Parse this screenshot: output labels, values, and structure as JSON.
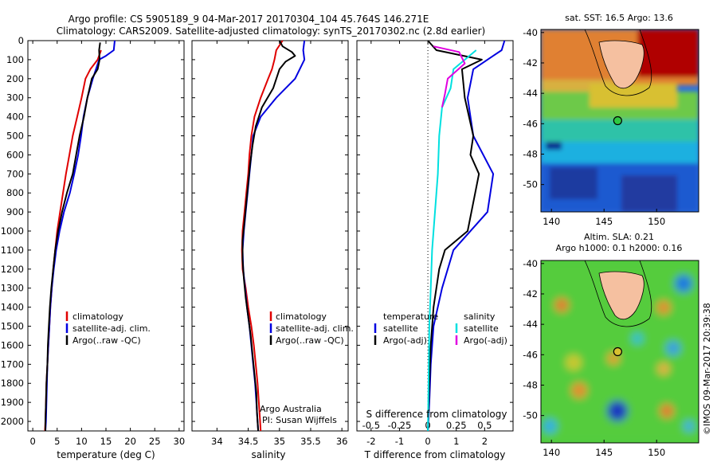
{
  "header": {
    "line1": "Argo profile: CS 5905189_9 04-Mar-2017 20170304_104 45.764S 146.271E",
    "line2": "Climatology: CARS2009. Satellite-adjusted climatology: synTS_20170302.nc (2.8d earlier)"
  },
  "colors": {
    "climatology": "#e00000",
    "satellite": "#0000e0",
    "argo": "#000000",
    "satellite_diff": "#00e0e0",
    "argo_diff": "#e000e0"
  },
  "chart_data": [
    {
      "type": "line",
      "id": "temperature",
      "xlabel": "temperature (deg C)",
      "ylim": [
        2050,
        0
      ],
      "xlim": [
        -1,
        31
      ],
      "xticks": [
        0,
        5,
        10,
        15,
        20,
        25,
        30
      ],
      "yticks": [
        0,
        100,
        200,
        300,
        400,
        500,
        600,
        700,
        800,
        900,
        1000,
        1100,
        1200,
        1300,
        1400,
        1500,
        1600,
        1700,
        1800,
        1900,
        2000
      ],
      "series": [
        {
          "name": "climatology",
          "color": "#e00000",
          "points": [
            [
              14.0,
              50
            ],
            [
              13.3,
              100
            ],
            [
              11.8,
              150
            ],
            [
              10.8,
              200
            ],
            [
              10.0,
              300
            ],
            [
              9.1,
              400
            ],
            [
              8.2,
              500
            ],
            [
              7.5,
              600
            ],
            [
              6.8,
              700
            ],
            [
              6.2,
              800
            ],
            [
              5.6,
              900
            ],
            [
              5.0,
              1000
            ],
            [
              4.6,
              1100
            ],
            [
              4.2,
              1200
            ],
            [
              3.9,
              1300
            ],
            [
              3.6,
              1400
            ],
            [
              3.4,
              1500
            ],
            [
              3.2,
              1600
            ],
            [
              3.0,
              1700
            ],
            [
              2.8,
              1800
            ],
            [
              2.7,
              1900
            ],
            [
              2.6,
              2000
            ],
            [
              2.5,
              2050
            ]
          ]
        },
        {
          "name": "satellite-adj. clim.",
          "color": "#0000e0",
          "points": [
            [
              16.8,
              0
            ],
            [
              16.6,
              50
            ],
            [
              15.0,
              80
            ],
            [
              13.6,
              100
            ],
            [
              12.3,
              200
            ],
            [
              11.2,
              300
            ],
            [
              10.4,
              400
            ],
            [
              9.9,
              500
            ],
            [
              9.3,
              600
            ],
            [
              8.5,
              700
            ],
            [
              7.6,
              800
            ],
            [
              6.4,
              900
            ],
            [
              5.5,
              1000
            ],
            [
              4.8,
              1100
            ],
            [
              4.3,
              1200
            ],
            [
              3.9,
              1300
            ],
            [
              3.6,
              1400
            ],
            [
              3.4,
              1500
            ],
            [
              3.2,
              1600
            ],
            [
              3.0,
              1700
            ],
            [
              2.9,
              1800
            ],
            [
              2.8,
              1900
            ],
            [
              2.7,
              2000
            ],
            [
              2.6,
              2050
            ]
          ]
        },
        {
          "name": "Argo(..raw -QC)",
          "color": "#000000",
          "points": [
            [
              13.8,
              10
            ],
            [
              13.6,
              50
            ],
            [
              13.7,
              100
            ],
            [
              13.3,
              150
            ],
            [
              12.1,
              200
            ],
            [
              11.2,
              300
            ],
            [
              10.5,
              400
            ],
            [
              9.6,
              500
            ],
            [
              8.9,
              600
            ],
            [
              8.2,
              700
            ],
            [
              7.0,
              800
            ],
            [
              6.0,
              900
            ],
            [
              5.2,
              1000
            ],
            [
              4.6,
              1100
            ],
            [
              4.2,
              1200
            ],
            [
              3.8,
              1300
            ],
            [
              3.5,
              1400
            ],
            [
              3.3,
              1500
            ],
            [
              3.1,
              1600
            ],
            [
              3.0,
              1700
            ],
            [
              2.8,
              1800
            ],
            [
              2.7,
              1900
            ],
            [
              2.6,
              2000
            ],
            [
              2.6,
              2050
            ]
          ]
        }
      ],
      "legend": [
        "climatology",
        "satellite-adj. clim.",
        "Argo(..raw -QC)"
      ]
    },
    {
      "type": "line",
      "id": "salinity",
      "xlabel": "salinity",
      "ylim": [
        2050,
        0
      ],
      "xlim": [
        33.6,
        36.1
      ],
      "xticks": [
        34,
        34.5,
        35,
        35.5,
        36
      ],
      "xticklabels": [
        "34",
        "34.5",
        "35",
        "35.5",
        "36"
      ],
      "series": [
        {
          "name": "climatology",
          "color": "#e00000",
          "points": [
            [
              35.05,
              0
            ],
            [
              34.95,
              50
            ],
            [
              34.92,
              100
            ],
            [
              34.88,
              150
            ],
            [
              34.82,
              200
            ],
            [
              34.7,
              300
            ],
            [
              34.6,
              400
            ],
            [
              34.55,
              500
            ],
            [
              34.52,
              600
            ],
            [
              34.5,
              700
            ],
            [
              34.47,
              800
            ],
            [
              34.44,
              900
            ],
            [
              34.41,
              1000
            ],
            [
              34.4,
              1100
            ],
            [
              34.41,
              1200
            ],
            [
              34.46,
              1300
            ],
            [
              34.5,
              1400
            ],
            [
              34.55,
              1500
            ],
            [
              34.59,
              1600
            ],
            [
              34.62,
              1700
            ],
            [
              34.65,
              1800
            ],
            [
              34.67,
              1900
            ],
            [
              34.69,
              2000
            ],
            [
              34.7,
              2050
            ]
          ]
        },
        {
          "name": "satellite-adj. clim.",
          "color": "#0000e0",
          "points": [
            [
              35.4,
              0
            ],
            [
              35.38,
              50
            ],
            [
              35.4,
              100
            ],
            [
              35.25,
              200
            ],
            [
              34.95,
              300
            ],
            [
              34.7,
              400
            ],
            [
              34.58,
              500
            ],
            [
              34.55,
              600
            ],
            [
              34.52,
              700
            ],
            [
              34.49,
              800
            ],
            [
              34.46,
              900
            ],
            [
              34.43,
              1000
            ],
            [
              34.41,
              1100
            ],
            [
              34.42,
              1200
            ],
            [
              34.45,
              1300
            ],
            [
              34.48,
              1400
            ],
            [
              34.52,
              1500
            ],
            [
              34.55,
              1600
            ],
            [
              34.58,
              1700
            ],
            [
              34.61,
              1800
            ],
            [
              34.63,
              1900
            ],
            [
              34.65,
              2000
            ],
            [
              34.66,
              2050
            ]
          ]
        },
        {
          "name": "Argo(..raw -QC)",
          "color": "#000000",
          "points": [
            [
              35.0,
              0
            ],
            [
              35.05,
              30
            ],
            [
              35.2,
              60
            ],
            [
              35.25,
              80
            ],
            [
              35.1,
              110
            ],
            [
              35.0,
              150
            ],
            [
              34.9,
              250
            ],
            [
              34.72,
              350
            ],
            [
              34.62,
              450
            ],
            [
              34.57,
              550
            ],
            [
              34.53,
              650
            ],
            [
              34.5,
              750
            ],
            [
              34.47,
              850
            ],
            [
              34.44,
              950
            ],
            [
              34.41,
              1050
            ],
            [
              34.41,
              1150
            ],
            [
              34.43,
              1250
            ],
            [
              34.46,
              1350
            ],
            [
              34.5,
              1450
            ],
            [
              34.54,
              1550
            ],
            [
              34.57,
              1650
            ],
            [
              34.6,
              1750
            ],
            [
              34.63,
              1850
            ],
            [
              34.64,
              1950
            ],
            [
              34.66,
              2050
            ]
          ]
        }
      ],
      "legend": [
        "climatology",
        "satellite-adj. clim.",
        "Argo(..raw -QC)"
      ],
      "annotation": [
        "Argo Australia",
        "PI: Susan Wijffels"
      ]
    },
    {
      "type": "line",
      "id": "difference",
      "xlabel": "T difference from climatology",
      "top_xlabel": "S difference from climatology",
      "ylim": [
        2050,
        0
      ],
      "xlim": [
        -2.5,
        3.0
      ],
      "xticks": [
        -2,
        -1,
        0,
        1,
        2
      ],
      "top_xticks": [
        -0.5,
        -0.25,
        0,
        0.25,
        0.5
      ],
      "top_xtick_labels": [
        "-0.5",
        "-0.25",
        "0",
        "0.25",
        "0.5"
      ],
      "zero_line": true,
      "series": [
        {
          "name": "temperature satellite",
          "color": "#0000e0",
          "points": [
            [
              2.7,
              0
            ],
            [
              2.6,
              50
            ],
            [
              2.3,
              80
            ],
            [
              1.6,
              150
            ],
            [
              1.4,
              300
            ],
            [
              1.6,
              500
            ],
            [
              2.3,
              700
            ],
            [
              2.1,
              900
            ],
            [
              0.9,
              1100
            ],
            [
              0.5,
              1300
            ],
            [
              0.2,
              1500
            ],
            [
              0.1,
              1700
            ],
            [
              0.05,
              1900
            ],
            [
              0.0,
              2050
            ]
          ]
        },
        {
          "name": "temperature Argo(-adj)",
          "color": "#000000",
          "points": [
            [
              0.0,
              0
            ],
            [
              0.3,
              50
            ],
            [
              1.9,
              100
            ],
            [
              1.2,
              150
            ],
            [
              1.3,
              300
            ],
            [
              1.6,
              500
            ],
            [
              1.5,
              600
            ],
            [
              1.8,
              700
            ],
            [
              1.6,
              850
            ],
            [
              1.4,
              1000
            ],
            [
              0.6,
              1100
            ],
            [
              0.4,
              1200
            ],
            [
              0.2,
              1400
            ],
            [
              0.1,
              1600
            ],
            [
              0.05,
              1800
            ],
            [
              0.0,
              2050
            ]
          ]
        },
        {
          "name": "salinity satellite",
          "color": "#00e0e0",
          "points": [
            [
              1.7,
              50
            ],
            [
              0.9,
              150
            ],
            [
              0.8,
              250
            ],
            [
              0.5,
              350
            ],
            [
              0.4,
              500
            ],
            [
              0.35,
              700
            ],
            [
              0.25,
              900
            ],
            [
              0.15,
              1100
            ],
            [
              0.1,
              1300
            ],
            [
              0.05,
              1500
            ],
            [
              0.0,
              2050
            ]
          ]
        },
        {
          "name": "salinity Argo(-adj)",
          "color": "#e000e0",
          "points": [
            [
              0.2,
              30
            ],
            [
              1.1,
              60
            ],
            [
              1.3,
              120
            ],
            [
              0.7,
              200
            ],
            [
              0.6,
              280
            ],
            [
              0.5,
              350
            ]
          ]
        }
      ],
      "legend": {
        "temperature_title": "temperature",
        "salinity_title": "salinity",
        "entries": [
          "satellite",
          "Argo(-adj)"
        ]
      }
    }
  ],
  "maps": [
    {
      "id": "sst-map",
      "title": "sat. SST: 16.5 Argo: 13.6",
      "yticks": [
        "-40",
        "-42",
        "-44",
        "-46",
        "-48",
        "-50"
      ],
      "xticks": [
        "140",
        "145",
        "150"
      ],
      "argo_marker": {
        "lon": 146.3,
        "lat": -45.8
      }
    },
    {
      "id": "sla-map",
      "title_line1": "Altim. SLA: 0.21",
      "title_line2": "Argo h1000: 0.1 h2000: 0.16",
      "yticks": [
        "-40",
        "-42",
        "-44",
        "-46",
        "-48",
        "-50"
      ],
      "xticks": [
        "140",
        "145",
        "150"
      ],
      "argo_marker": {
        "lon": 146.3,
        "lat": -45.8
      }
    }
  ],
  "credit": "©IMOS 09-Mar-2017 20:39:38"
}
